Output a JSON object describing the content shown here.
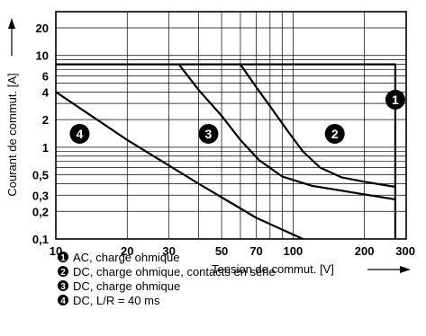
{
  "chart_data": {
    "type": "line",
    "xlabel": "Tension de commut. [V]",
    "ylabel": "Courant de commut. [A]",
    "x_scale": "log",
    "y_scale": "log",
    "xlim": [
      10,
      300
    ],
    "ylim": [
      0.1,
      30
    ],
    "grid": true,
    "x_ticks": [
      {
        "value": 10,
        "label": "10"
      },
      {
        "value": 20,
        "label": "20"
      },
      {
        "value": 30,
        "label": "30"
      },
      {
        "value": 50,
        "label": "50"
      },
      {
        "value": 70,
        "label": "70"
      },
      {
        "value": 100,
        "label": "100"
      },
      {
        "value": 200,
        "label": "200"
      },
      {
        "value": 300,
        "label": "300"
      }
    ],
    "y_ticks": [
      {
        "value": 0.1,
        "label": "0,1"
      },
      {
        "value": 0.2,
        "label": "0,2"
      },
      {
        "value": 0.3,
        "label": "0,3"
      },
      {
        "value": 0.5,
        "label": "0,5"
      },
      {
        "value": 1,
        "label": "1"
      },
      {
        "value": 2,
        "label": "2"
      },
      {
        "value": 4,
        "label": "4"
      },
      {
        "value": 6,
        "label": "6"
      },
      {
        "value": 10,
        "label": "10"
      },
      {
        "value": 20,
        "label": "20"
      }
    ],
    "series": [
      {
        "id": "1",
        "points": [
          [
            10,
            8
          ],
          [
            270,
            8
          ],
          [
            270,
            0.1
          ]
        ]
      },
      {
        "id": "2",
        "points": [
          [
            60,
            8
          ],
          [
            70,
            4.5
          ],
          [
            80,
            2.8
          ],
          [
            95,
            1.5
          ],
          [
            110,
            0.9
          ],
          [
            130,
            0.6
          ],
          [
            160,
            0.47
          ],
          [
            200,
            0.42
          ],
          [
            270,
            0.37
          ]
        ]
      },
      {
        "id": "3",
        "points": [
          [
            33,
            8
          ],
          [
            40,
            4.2
          ],
          [
            50,
            2.2
          ],
          [
            60,
            1.2
          ],
          [
            72,
            0.72
          ],
          [
            90,
            0.48
          ],
          [
            120,
            0.38
          ],
          [
            180,
            0.32
          ],
          [
            270,
            0.27
          ]
        ]
      },
      {
        "id": "4",
        "points": [
          [
            10,
            4
          ],
          [
            20,
            1.2
          ],
          [
            40,
            0.4
          ],
          [
            70,
            0.17
          ],
          [
            110,
            0.1
          ]
        ]
      }
    ],
    "badges": [
      {
        "id": "1",
        "x": 270,
        "y": 3.3
      },
      {
        "id": "2",
        "x": 150,
        "y": 1.4
      },
      {
        "id": "3",
        "x": 44,
        "y": 1.4
      },
      {
        "id": "4",
        "x": 12.6,
        "y": 1.4
      }
    ],
    "legend": [
      {
        "id": "1",
        "text": "AC, charge ohmique"
      },
      {
        "id": "2",
        "text": "DC, charge ohmique, contacts en série"
      },
      {
        "id": "3",
        "text": "DC, charge ohmique"
      },
      {
        "id": "4",
        "text": "DC, L/R = 40 ms"
      }
    ]
  }
}
